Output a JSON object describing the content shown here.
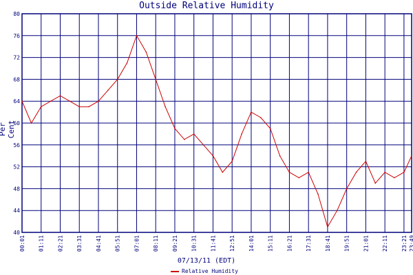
{
  "chart_data": {
    "type": "line",
    "title": "Outside Relative Humidity",
    "xlabel": "07/13/11 (EDT)",
    "ylabel": "Per Cent",
    "ylim": [
      40,
      80
    ],
    "y_ticks": [
      "40",
      "44",
      "48",
      "52",
      "56",
      "60",
      "64",
      "68",
      "72",
      "76",
      "80"
    ],
    "x_ticks": [
      "00:01",
      "01:11",
      "02:21",
      "03:31",
      "04:41",
      "05:51",
      "07:01",
      "08:11",
      "09:21",
      "10:31",
      "11:41",
      "12:51",
      "14:01",
      "15:11",
      "16:21",
      "17:31",
      "18:41",
      "19:51",
      "21:01",
      "22:11",
      "23:21",
      "23:49"
    ],
    "grid": true,
    "series": [
      {
        "name": "Relative Humidity",
        "color": "#cc0000",
        "x": [
          "00:01",
          "00:35",
          "01:11",
          "01:46",
          "02:21",
          "02:56",
          "03:31",
          "04:06",
          "04:41",
          "05:16",
          "05:51",
          "06:26",
          "07:01",
          "07:36",
          "08:11",
          "08:46",
          "09:21",
          "09:56",
          "10:31",
          "11:06",
          "11:41",
          "12:16",
          "12:51",
          "13:26",
          "14:01",
          "14:36",
          "15:11",
          "15:46",
          "16:21",
          "16:56",
          "17:31",
          "18:06",
          "18:41",
          "19:16",
          "19:51",
          "20:26",
          "21:01",
          "21:36",
          "22:11",
          "22:46",
          "23:21",
          "23:49"
        ],
        "values": [
          64,
          60,
          63,
          64,
          65,
          64,
          63,
          63,
          64,
          66,
          68,
          71,
          76,
          73,
          68,
          63,
          59,
          57,
          58,
          56,
          54,
          51,
          53,
          58,
          62,
          61,
          59,
          54,
          51,
          50,
          51,
          47,
          41,
          44,
          48,
          51,
          53,
          49,
          51,
          50,
          51,
          54
        ]
      }
    ]
  }
}
